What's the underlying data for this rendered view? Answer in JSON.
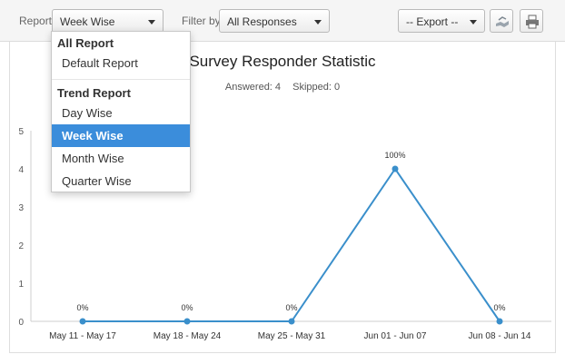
{
  "toolbar": {
    "report_label": "Report",
    "report_value": "Week Wise",
    "filter_label": "Filter by",
    "filter_value": "All Responses",
    "export_value": "-- Export --"
  },
  "chart": {
    "title": "Survey Responder Statistic",
    "answered": "Answered: 4",
    "skipped": "Skipped: 0"
  },
  "dropdown": {
    "groups": [
      {
        "header": "All Report",
        "items": [
          "Default Report"
        ]
      },
      {
        "header": "Trend Report",
        "items": [
          "Day Wise",
          "Week Wise",
          "Month Wise",
          "Quarter Wise"
        ]
      }
    ],
    "selected": "Week Wise"
  },
  "colors": {
    "line": "#3a8fcb",
    "selected_bg": "#3b8ddb"
  },
  "chart_data": {
    "type": "line",
    "categories": [
      "May 11 - May 17",
      "May 18 - May 24",
      "May 25 - May 31",
      "Jun 01 - Jun 07",
      "Jun 08 - Jun 14"
    ],
    "values": [
      0,
      0,
      0,
      4,
      0
    ],
    "data_labels": [
      "0%",
      "0%",
      "0%",
      "100%",
      "0%"
    ],
    "yticks": [
      "0",
      "1",
      "2",
      "3",
      "4",
      "5"
    ],
    "ylim": [
      0,
      5
    ],
    "title": "Survey Responder Statistic",
    "grid": false
  }
}
